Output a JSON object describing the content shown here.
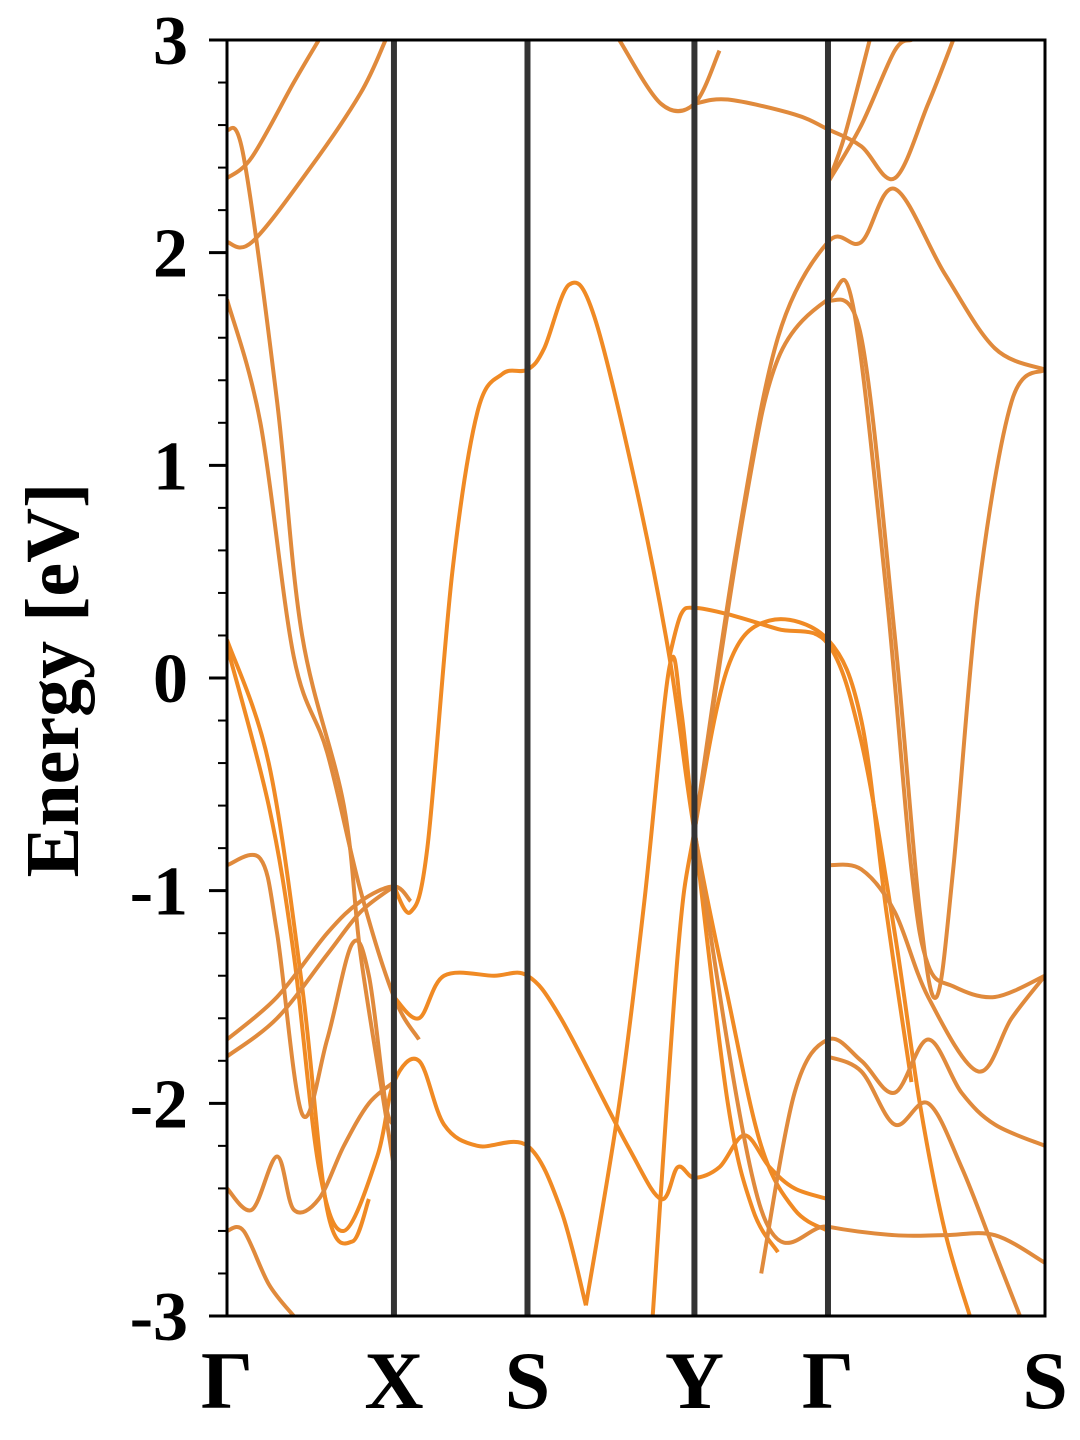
{
  "chart_data": {
    "type": "line",
    "title": "",
    "xlabel": "",
    "ylabel": "Energy [eV]",
    "ylim": [
      -3,
      3
    ],
    "yticks": [
      "-3",
      "-2",
      "-1",
      "0",
      "1",
      "2",
      "3"
    ],
    "grid": false,
    "legend": "none",
    "colors": {
      "band": "#E08A3C",
      "band_highlight": "#F08A24",
      "divider": "#333333",
      "axes": "#000000"
    },
    "kpoints": [
      {
        "label": "Γ",
        "x": 0.0
      },
      {
        "label": "X",
        "x": 1.0
      },
      {
        "label": "S",
        "x": 1.8
      },
      {
        "label": "Y",
        "x": 2.8
      },
      {
        "label": "Γ",
        "x": 3.6
      },
      {
        "label": "S",
        "x": 4.9
      }
    ],
    "xlim": [
      0,
      4.9
    ],
    "series": [
      {
        "highlight": true,
        "points": [
          [
            0,
            0.18
          ],
          [
            0.25,
            -0.4
          ],
          [
            0.45,
            -1.45
          ],
          [
            0.6,
            -2.5
          ],
          [
            0.75,
            -2.65
          ],
          [
            0.85,
            -2.45
          ]
        ]
      },
      {
        "highlight": true,
        "points": [
          [
            0,
            0.15
          ],
          [
            0.25,
            -0.6
          ],
          [
            0.4,
            -1.3
          ],
          [
            0.55,
            -2.3
          ],
          [
            0.7,
            -2.6
          ],
          [
            0.9,
            -2.25
          ],
          [
            1.0,
            -1.9
          ],
          [
            1.15,
            -1.8
          ],
          [
            1.3,
            -2.1
          ],
          [
            1.5,
            -2.2
          ],
          [
            1.8,
            -2.2
          ],
          [
            2.0,
            -2.5
          ],
          [
            2.15,
            -2.95
          ]
        ]
      },
      {
        "highlight": false,
        "points": [
          [
            0,
            1.78
          ],
          [
            0.2,
            1.2
          ],
          [
            0.4,
            0.1
          ],
          [
            0.6,
            -0.35
          ],
          [
            0.8,
            -1.0
          ],
          [
            1.0,
            -1.5
          ],
          [
            1.15,
            -1.7
          ]
        ]
      },
      {
        "highlight": false,
        "points": [
          [
            0,
            2.58
          ],
          [
            0.1,
            2.45
          ],
          [
            0.3,
            1.3
          ],
          [
            0.45,
            0.2
          ],
          [
            0.7,
            -0.6
          ],
          [
            0.8,
            -1.3
          ],
          [
            0.95,
            -2.05
          ],
          [
            1.0,
            -2.3
          ]
        ]
      },
      {
        "highlight": false,
        "points": [
          [
            0,
            2.05
          ],
          [
            0.15,
            2.05
          ],
          [
            0.5,
            2.4
          ],
          [
            0.8,
            2.75
          ],
          [
            0.95,
            3.0
          ]
        ]
      },
      {
        "highlight": false,
        "points": [
          [
            0,
            2.35
          ],
          [
            0.15,
            2.45
          ],
          [
            0.4,
            2.8
          ],
          [
            0.55,
            3.0
          ]
        ]
      },
      {
        "highlight": false,
        "points": [
          [
            0,
            -0.88
          ],
          [
            0.2,
            -0.85
          ],
          [
            0.3,
            -1.2
          ],
          [
            0.45,
            -2.05
          ],
          [
            0.6,
            -1.7
          ],
          [
            0.75,
            -1.25
          ],
          [
            0.85,
            -1.4
          ],
          [
            0.95,
            -2.0
          ],
          [
            1.0,
            -2.1
          ]
        ]
      },
      {
        "highlight": false,
        "points": [
          [
            0,
            -1.7
          ],
          [
            0.3,
            -1.5
          ],
          [
            0.6,
            -1.2
          ],
          [
            0.8,
            -1.05
          ],
          [
            1.0,
            -0.98
          ],
          [
            1.1,
            -1.05
          ]
        ]
      },
      {
        "highlight": false,
        "points": [
          [
            0,
            -1.78
          ],
          [
            0.3,
            -1.6
          ],
          [
            0.6,
            -1.3
          ],
          [
            0.8,
            -1.1
          ],
          [
            1.0,
            -0.98
          ]
        ]
      },
      {
        "highlight": false,
        "points": [
          [
            0,
            -2.4
          ],
          [
            0.15,
            -2.5
          ],
          [
            0.3,
            -2.25
          ],
          [
            0.4,
            -2.5
          ],
          [
            0.55,
            -2.45
          ],
          [
            0.7,
            -2.2
          ],
          [
            0.85,
            -2.0
          ],
          [
            1.0,
            -1.9
          ]
        ]
      },
      {
        "highlight": false,
        "points": [
          [
            0,
            -2.6
          ],
          [
            0.1,
            -2.6
          ],
          [
            0.25,
            -2.85
          ],
          [
            0.4,
            -3.0
          ]
        ]
      },
      {
        "highlight": true,
        "points": [
          [
            1.0,
            -1.5
          ],
          [
            1.15,
            -1.6
          ],
          [
            1.3,
            -1.4
          ],
          [
            1.6,
            -1.4
          ],
          [
            1.8,
            -1.4
          ],
          [
            2.0,
            -1.6
          ],
          [
            2.4,
            -2.2
          ],
          [
            2.6,
            -2.45
          ],
          [
            2.7,
            -2.3
          ],
          [
            2.8,
            -2.35
          ],
          [
            2.95,
            -2.3
          ],
          [
            3.1,
            -2.15
          ],
          [
            3.25,
            -2.3
          ],
          [
            3.4,
            -2.4
          ],
          [
            3.6,
            -2.45
          ]
        ]
      },
      {
        "highlight": true,
        "points": [
          [
            1.0,
            -0.98
          ],
          [
            1.1,
            -1.1
          ],
          [
            1.2,
            -0.8
          ],
          [
            1.35,
            0.5
          ],
          [
            1.5,
            1.25
          ],
          [
            1.65,
            1.43
          ],
          [
            1.8,
            1.45
          ],
          [
            1.9,
            1.55
          ],
          [
            2.05,
            1.85
          ],
          [
            2.2,
            1.7
          ],
          [
            2.45,
            0.9
          ],
          [
            2.65,
            0.1
          ],
          [
            2.8,
            -0.72
          ],
          [
            3.0,
            -1.5
          ],
          [
            3.2,
            -2.2
          ],
          [
            3.4,
            -2.5
          ],
          [
            3.6,
            -2.6
          ]
        ]
      },
      {
        "highlight": true,
        "points": [
          [
            2.15,
            -2.95
          ],
          [
            2.35,
            -2.0
          ],
          [
            2.5,
            -1.05
          ],
          [
            2.65,
            0.05
          ],
          [
            2.72,
            -0.15
          ],
          [
            2.8,
            -0.72
          ],
          [
            3.0,
            -2.0
          ],
          [
            3.15,
            -2.5
          ],
          [
            3.3,
            -2.7
          ]
        ]
      },
      {
        "highlight": true,
        "points": [
          [
            2.65,
            0.1
          ],
          [
            2.72,
            0.3
          ],
          [
            2.8,
            0.33
          ],
          [
            3.0,
            0.3
          ],
          [
            3.3,
            0.23
          ],
          [
            3.6,
            0.16
          ],
          [
            3.8,
            -0.3
          ],
          [
            4.0,
            -1.2
          ],
          [
            4.15,
            -2.0
          ],
          [
            4.3,
            -2.6
          ],
          [
            4.45,
            -3.0
          ]
        ]
      },
      {
        "highlight": true,
        "points": [
          [
            2.55,
            -3.0
          ],
          [
            2.7,
            -1.3
          ],
          [
            2.8,
            -0.72
          ],
          [
            3.0,
            0.05
          ],
          [
            3.25,
            0.27
          ],
          [
            3.6,
            0.18
          ],
          [
            3.8,
            -0.2
          ],
          [
            3.95,
            -1.1
          ],
          [
            4.1,
            -1.9
          ]
        ]
      },
      {
        "highlight": false,
        "points": [
          [
            2.8,
            -0.72
          ],
          [
            3.1,
            0.8
          ],
          [
            3.3,
            1.5
          ],
          [
            3.6,
            1.78
          ],
          [
            3.75,
            1.75
          ],
          [
            3.95,
            0.4
          ],
          [
            4.1,
            -0.9
          ],
          [
            4.2,
            -1.35
          ],
          [
            4.35,
            -1.45
          ],
          [
            4.6,
            -1.5
          ],
          [
            4.9,
            -1.4
          ]
        ]
      },
      {
        "highlight": false,
        "points": [
          [
            2.8,
            -0.72
          ],
          [
            3.05,
            0.6
          ],
          [
            3.3,
            1.6
          ],
          [
            3.6,
            2.05
          ],
          [
            3.8,
            2.05
          ],
          [
            4.0,
            2.3
          ],
          [
            4.3,
            1.9
          ],
          [
            4.6,
            1.55
          ],
          [
            4.9,
            1.45
          ]
        ]
      },
      {
        "highlight": false,
        "points": [
          [
            3.6,
            1.78
          ],
          [
            3.8,
            1.6
          ],
          [
            4.0,
            0.2
          ],
          [
            4.15,
            -1.1
          ],
          [
            4.25,
            -1.5
          ],
          [
            4.35,
            -0.9
          ],
          [
            4.5,
            0.4
          ],
          [
            4.7,
            1.3
          ],
          [
            4.9,
            1.45
          ]
        ]
      },
      {
        "highlight": false,
        "points": [
          [
            3.6,
            2.33
          ],
          [
            3.8,
            2.6
          ],
          [
            4.0,
            2.95
          ],
          [
            4.1,
            3.0
          ]
        ]
      },
      {
        "highlight": false,
        "points": [
          [
            3.6,
            2.33
          ],
          [
            3.7,
            2.55
          ],
          [
            3.85,
            3.0
          ]
        ]
      },
      {
        "highlight": false,
        "points": [
          [
            2.8,
            2.7
          ],
          [
            3.0,
            2.72
          ],
          [
            3.4,
            2.65
          ],
          [
            3.6,
            2.58
          ],
          [
            3.8,
            2.5
          ],
          [
            4.0,
            2.35
          ],
          [
            4.2,
            2.7
          ],
          [
            4.35,
            3.0
          ]
        ]
      },
      {
        "highlight": false,
        "points": [
          [
            2.35,
            3.0
          ],
          [
            2.6,
            2.7
          ],
          [
            2.8,
            2.7
          ],
          [
            2.95,
            2.95
          ]
        ]
      },
      {
        "highlight": false,
        "points": [
          [
            2.8,
            -0.72
          ],
          [
            3.2,
            -2.5
          ],
          [
            3.6,
            -2.58
          ],
          [
            4.0,
            -2.62
          ],
          [
            4.3,
            -2.62
          ],
          [
            4.6,
            -2.62
          ],
          [
            4.9,
            -2.75
          ]
        ]
      },
      {
        "highlight": false,
        "points": [
          [
            3.2,
            -2.8
          ],
          [
            3.4,
            -1.95
          ],
          [
            3.6,
            -1.7
          ],
          [
            3.8,
            -1.8
          ],
          [
            4.0,
            -1.95
          ],
          [
            4.2,
            -1.7
          ],
          [
            4.4,
            -1.95
          ],
          [
            4.6,
            -2.1
          ],
          [
            4.9,
            -2.2
          ]
        ]
      },
      {
        "highlight": false,
        "points": [
          [
            3.6,
            -0.88
          ],
          [
            3.8,
            -0.9
          ],
          [
            4.0,
            -1.1
          ],
          [
            4.2,
            -1.5
          ],
          [
            4.5,
            -1.85
          ],
          [
            4.7,
            -1.6
          ],
          [
            4.9,
            -1.4
          ]
        ]
      },
      {
        "highlight": false,
        "points": [
          [
            3.6,
            -1.78
          ],
          [
            3.8,
            -1.85
          ],
          [
            4.0,
            -2.1
          ],
          [
            4.2,
            -2.0
          ],
          [
            4.4,
            -2.3
          ],
          [
            4.6,
            -2.7
          ],
          [
            4.75,
            -3.0
          ]
        ]
      }
    ]
  }
}
